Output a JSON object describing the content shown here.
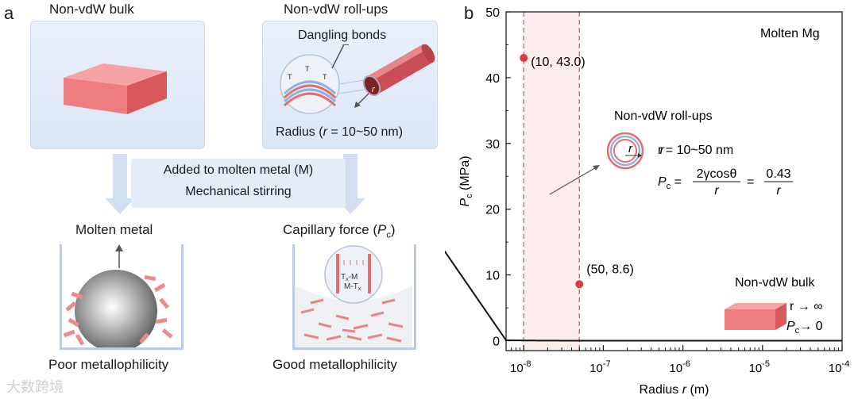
{
  "panel_a": {
    "letter": "a",
    "bulk_title": "Non-vdW bulk",
    "rollups_title": "Non-vdW roll-ups",
    "dangling_bonds": "Dangling bonds",
    "radius_prefix": "Radius (",
    "radius_r": "r",
    "radius_suffix": " = 10~50 nm)",
    "surface_labels": [
      "T",
      "T",
      "T"
    ],
    "tube_radius_label": "r",
    "process_line1": "Added to molten metal (M)",
    "process_line2": "Mechanical stirring",
    "molten_metal": "Molten metal",
    "capillary_prefix": "Capillary force (",
    "capillary_P": "P",
    "capillary_sub": "c",
    "capillary_suffix": ")",
    "inset_line1": "T",
    "inset_line1b": "-M",
    "inset_line2": "M-T",
    "subscript_x": "x",
    "poor": "Poor metallophilicity",
    "good": "Good metallophilicity",
    "watermark": "大数跨境"
  },
  "panel_b": {
    "letter": "b",
    "molten_label": "Molten Mg",
    "rollups_title": "Non-vdW roll-ups",
    "r_range": "r = 10~50 nm",
    "formula_lhs_P": "P",
    "formula_lhs_sub": "c",
    "formula_eq": " = ",
    "formula_num1": "2γcosθ",
    "formula_den1": "r",
    "formula_num2": "0.43",
    "formula_den2": "r",
    "icon_r": "r",
    "bulk_title": "Non-vdW bulk",
    "r_inf": "r → ∞",
    "pc_zero_P": "P",
    "pc_zero_sub": "c",
    "pc_zero_rest": "→ 0"
  },
  "chart_data": {
    "type": "line",
    "title": "",
    "xlabel_prefix": "Radius ",
    "xlabel_var": "r",
    "xlabel_unit": " (m)",
    "ylabel_var": "P",
    "ylabel_sub": "c",
    "ylabel_unit": " (MPa)",
    "x_scale": "log",
    "xlim": [
      6e-09,
      0.0001
    ],
    "ylim": [
      -1.5,
      50
    ],
    "xticks": [
      1e-08,
      1e-07,
      1e-06,
      1e-05,
      0.0001
    ],
    "xtick_labels": [
      [
        "10",
        "-8"
      ],
      [
        "10",
        "-7"
      ],
      [
        "10",
        "-6"
      ],
      [
        "10",
        "-5"
      ],
      [
        "10",
        "-4"
      ]
    ],
    "yticks": [
      0,
      10,
      20,
      30,
      40,
      50
    ],
    "ytick_labels": [
      "0",
      "10",
      "20",
      "30",
      "40",
      "50"
    ],
    "series": [
      {
        "name": "Pc = 0.43 / r",
        "coefficient_mpa_nm": 0.43
      }
    ],
    "points": [
      {
        "x": 1e-08,
        "y": 43.0,
        "label": "(10, 43.0)"
      },
      {
        "x": 5e-08,
        "y": 8.6,
        "label": "(50, 8.6)"
      }
    ],
    "shaded_range": [
      1e-08,
      5e-08
    ],
    "colors": {
      "curve": "#111111",
      "point": "#e0393f",
      "dash": "#e25a5a",
      "shade": "#fdecec"
    }
  }
}
